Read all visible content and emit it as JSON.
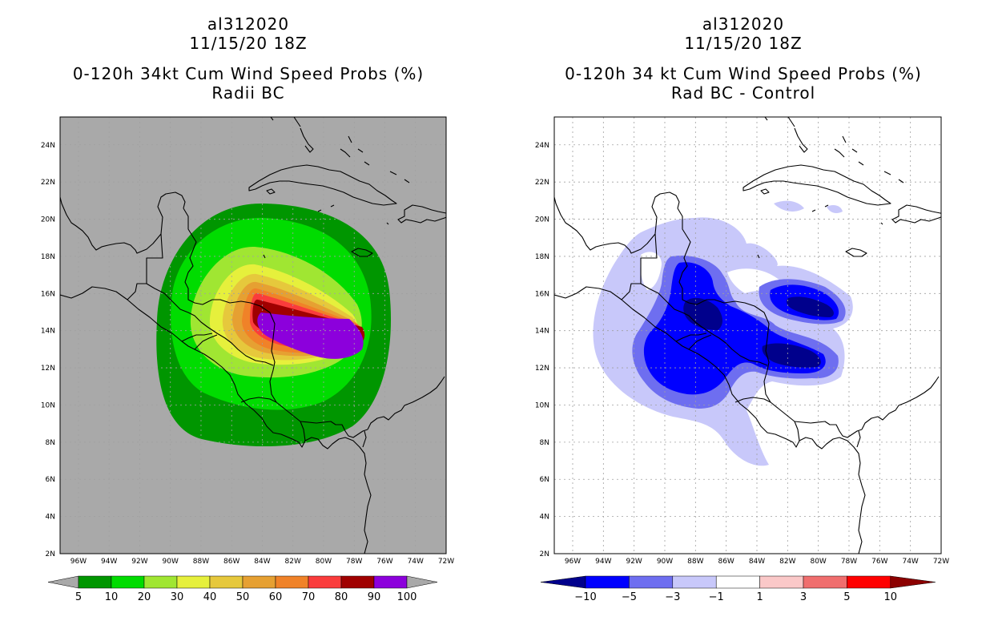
{
  "left": {
    "titles": [
      "al312020",
      "11/15/20 18Z",
      "0-120h 34kt Cum Wind Speed Probs (%)",
      "Radii BC"
    ],
    "background_color": "#a9a9a9",
    "colorbar": {
      "labels": [
        "5",
        "10",
        "20",
        "30",
        "40",
        "50",
        "60",
        "70",
        "80",
        "90",
        "100"
      ],
      "colors": [
        "#009600",
        "#00dc00",
        "#a0e632",
        "#e6f03c",
        "#e6c83c",
        "#e6a032",
        "#f08228",
        "#fa3c3c",
        "#a00000",
        "#8c00dc"
      ],
      "arrow_color": "#a9a9a9"
    }
  },
  "right": {
    "titles": [
      "al312020",
      "11/15/20 18Z",
      "0-120h 34 kt Cum Wind Speed Probs (%)",
      "Rad BC - Control"
    ],
    "background_color": "#ffffff",
    "colorbar": {
      "labels": [
        "-10",
        "-5",
        "-3",
        "-1",
        "1",
        "3",
        "5",
        "10"
      ],
      "colors": [
        "#0000ff",
        "#6e6ef0",
        "#c8c8fa",
        "#ffffff",
        "#fac8c8",
        "#f06e6e",
        "#ff0000"
      ],
      "arrow_low_color": "#00008c",
      "arrow_high_color": "#8c0000"
    }
  },
  "axes": {
    "lon_labels": [
      "96W",
      "94W",
      "92W",
      "90W",
      "88W",
      "86W",
      "84W",
      "82W",
      "80W",
      "78W",
      "76W",
      "74W",
      "72W"
    ],
    "lat_labels": [
      "2N",
      "4N",
      "6N",
      "8N",
      "10N",
      "12N",
      "14N",
      "16N",
      "18N",
      "20N",
      "22N",
      "24N"
    ],
    "lon_range": [
      -97.2,
      -72
    ],
    "lat_range": [
      2,
      25.5
    ]
  },
  "colors": {
    "coastline": "#000000",
    "grid": "#a0a0a0",
    "frame": "#000000"
  }
}
